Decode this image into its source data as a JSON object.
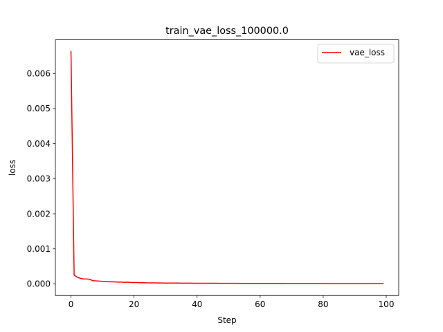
{
  "chart_data": {
    "type": "line",
    "title": "train_vae_loss_100000.0",
    "xlabel": "Step",
    "ylabel": "loss",
    "xlim": [
      -4.95,
      103.95
    ],
    "ylim": [
      -0.00033,
      0.00696
    ],
    "x_ticks": [
      0,
      20,
      40,
      60,
      80,
      100
    ],
    "x_tick_labels": [
      "0",
      "20",
      "40",
      "60",
      "80",
      "100"
    ],
    "y_ticks": [
      0.0,
      0.001,
      0.002,
      0.003,
      0.004,
      0.005,
      0.006
    ],
    "y_tick_labels": [
      "0.000",
      "0.001",
      "0.002",
      "0.003",
      "0.004",
      "0.005",
      "0.006"
    ],
    "grid": false,
    "legend_position": "top-right",
    "series": [
      {
        "name": "vae_loss",
        "color": "#ff0000",
        "x": [
          0,
          1,
          2,
          3,
          4,
          5,
          6,
          7,
          8,
          9,
          10,
          11,
          12,
          13,
          14,
          15,
          16,
          17,
          18,
          19,
          20,
          21,
          22,
          23,
          24,
          25,
          26,
          27,
          28,
          29,
          30,
          31,
          32,
          33,
          34,
          35,
          36,
          37,
          38,
          39,
          40,
          41,
          42,
          43,
          44,
          45,
          46,
          47,
          48,
          49,
          50,
          51,
          52,
          53,
          54,
          55,
          56,
          57,
          58,
          59,
          60,
          61,
          62,
          63,
          64,
          65,
          66,
          67,
          68,
          69,
          70,
          71,
          72,
          73,
          74,
          75,
          76,
          77,
          78,
          79,
          80,
          81,
          82,
          83,
          84,
          85,
          86,
          87,
          88,
          89,
          90,
          91,
          92,
          93,
          94,
          95,
          96,
          97,
          98,
          99
        ],
        "values": [
          0.00663,
          0.00025,
          0.00019,
          0.00016,
          0.00014,
          0.00014,
          0.00013,
          9e-05,
          8.5e-05,
          8e-05,
          7e-05,
          6.5e-05,
          6e-05,
          6e-05,
          5.5e-05,
          5e-05,
          5e-05,
          4.5e-05,
          5e-05,
          4e-05,
          4e-05,
          4e-05,
          3.5e-05,
          3.5e-05,
          3e-05,
          3e-05,
          3e-05,
          2.8e-05,
          2.7e-05,
          2.6e-05,
          2.5e-05,
          2.4e-05,
          2.4e-05,
          2.3e-05,
          2.3e-05,
          2.2e-05,
          2.2e-05,
          2.1e-05,
          2.1e-05,
          2e-05,
          2e-05,
          2e-05,
          1.9e-05,
          1.9e-05,
          1.8e-05,
          1.8e-05,
          1.8e-05,
          1.7e-05,
          1.7e-05,
          1.7e-05,
          1.6e-05,
          1.6e-05,
          1.6e-05,
          1.6e-05,
          1.5e-05,
          1.5e-05,
          1.5e-05,
          1.5e-05,
          1.4e-05,
          1.4e-05,
          1.4e-05,
          1.4e-05,
          1.4e-05,
          1.3e-05,
          1.3e-05,
          1.3e-05,
          1.3e-05,
          1.3e-05,
          1.2e-05,
          1.2e-05,
          1.2e-05,
          1.2e-05,
          1.2e-05,
          1.2e-05,
          1.1e-05,
          1.1e-05,
          1.1e-05,
          1.1e-05,
          1.1e-05,
          1.1e-05,
          1e-05,
          1e-05,
          1e-05,
          1e-05,
          1e-05,
          1e-05,
          1e-05,
          1e-05,
          9e-06,
          9e-06,
          9e-06,
          9e-06,
          9e-06,
          9e-06,
          9e-06,
          9e-06,
          9e-06,
          8e-06,
          8e-06,
          8e-06
        ]
      }
    ]
  }
}
